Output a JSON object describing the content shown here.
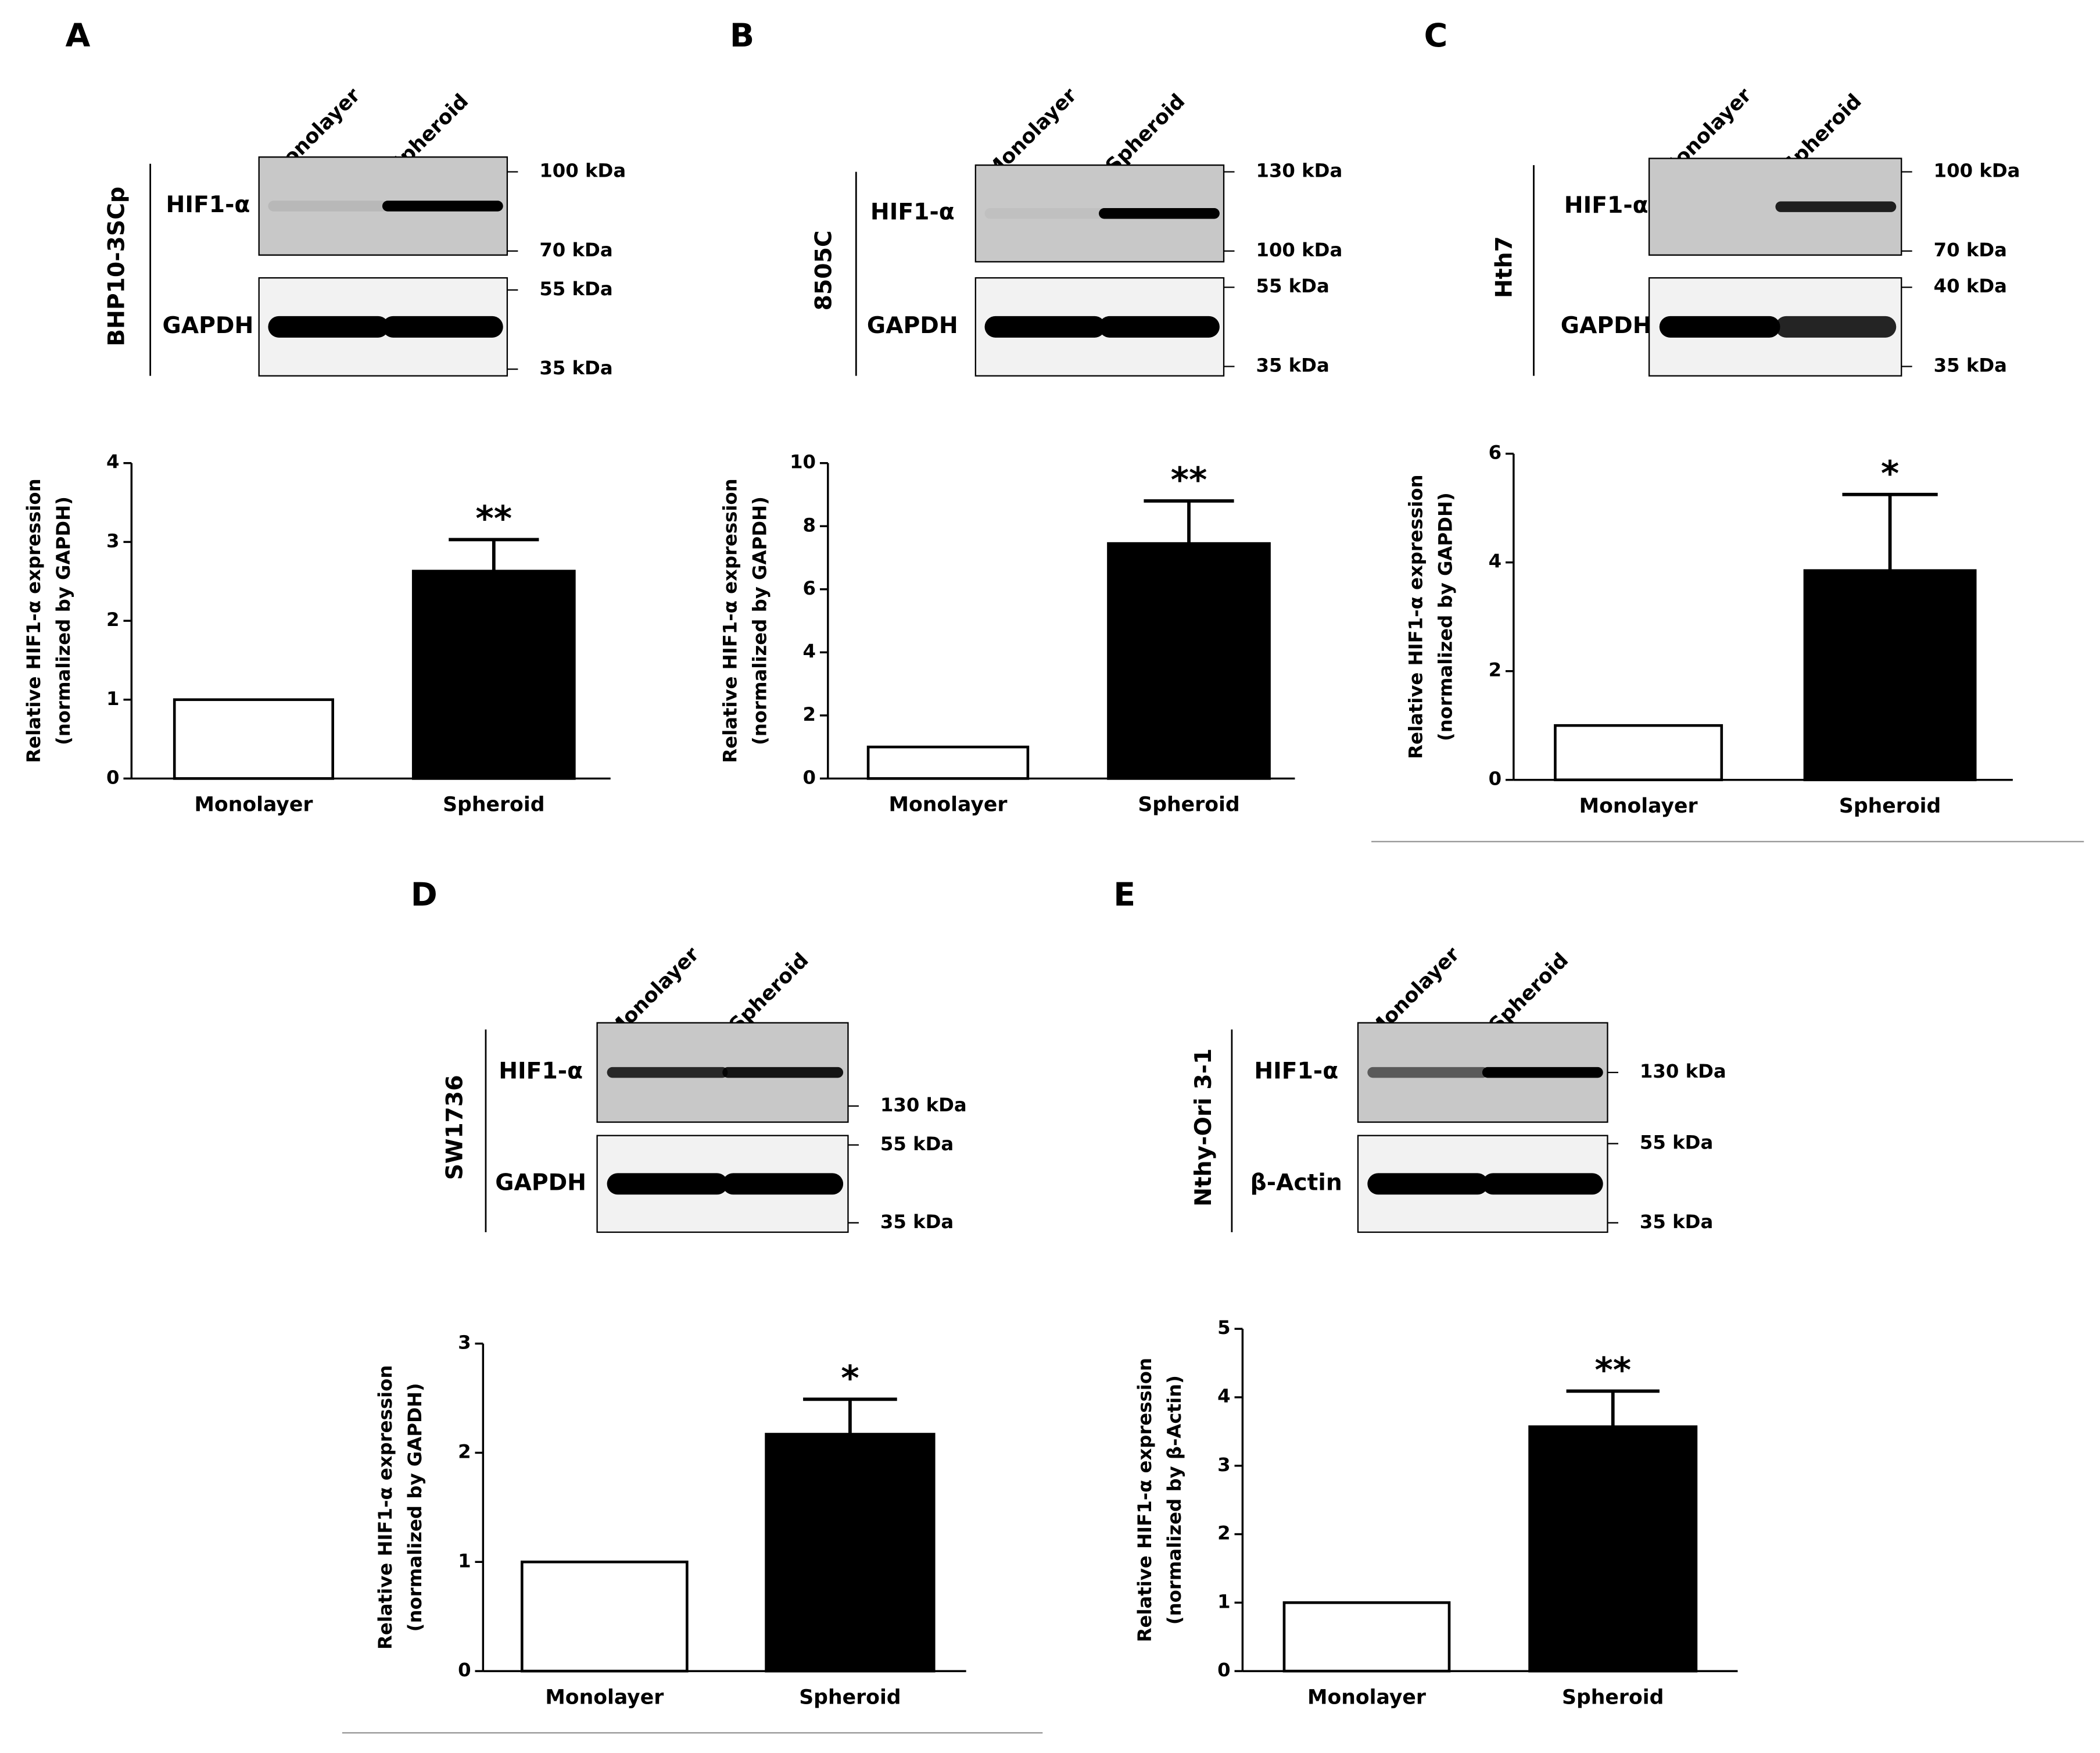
{
  "chart_data": [
    {
      "type": "bar",
      "panel": "A",
      "cell_line": "BHP10-3SCp",
      "lanes": [
        "Monolayer",
        "Spheroid"
      ],
      "bands": [
        "HIF1-α",
        "GAPDH"
      ],
      "markers": [
        "100 kDa",
        "70 kDa",
        "55 kDa",
        "35 kDa"
      ],
      "categories": [
        "Monolayer",
        "Spheroid"
      ],
      "values": [
        1,
        2.63
      ],
      "errors": [
        null,
        0.4
      ],
      "annotation": "**",
      "ylabel": [
        "Relative HIF1-α expression",
        "(normalized by GAPDH)"
      ],
      "ylim": [
        0,
        4
      ],
      "yticks": [
        0,
        1,
        2,
        3,
        4
      ],
      "colors": [
        "#ffffff",
        "#000000"
      ]
    },
    {
      "type": "bar",
      "panel": "B",
      "cell_line": "8505C",
      "lanes": [
        "Monolayer",
        "Spheroid"
      ],
      "bands": [
        "HIF1-α",
        "GAPDH"
      ],
      "markers": [
        "130 kDa",
        "100 kDa",
        "55 kDa",
        "35 kDa"
      ],
      "categories": [
        "Monolayer",
        "Spheroid"
      ],
      "values": [
        1,
        7.45
      ],
      "errors": [
        null,
        1.35
      ],
      "annotation": "**",
      "ylabel": [
        "Relative HIF1-α expression",
        "(normalized by GAPDH)"
      ],
      "ylim": [
        0,
        10
      ],
      "yticks": [
        0,
        2,
        4,
        6,
        8,
        10
      ],
      "colors": [
        "#ffffff",
        "#000000"
      ]
    },
    {
      "type": "bar",
      "panel": "C",
      "cell_line": "Hth7",
      "lanes": [
        "Monolayer",
        "Spheroid"
      ],
      "bands": [
        "HIF1-α",
        "GAPDH"
      ],
      "markers": [
        "100 kDa",
        "70 kDa",
        "40 kDa",
        "35 kDa"
      ],
      "categories": [
        "Monolayer",
        "Spheroid"
      ],
      "values": [
        1,
        3.85
      ],
      "errors": [
        null,
        1.4
      ],
      "annotation": "*",
      "ylabel": [
        "Relative HIF1-α expression",
        "(normalized by GAPDH)"
      ],
      "ylim": [
        0,
        6
      ],
      "yticks": [
        0,
        2,
        4,
        6
      ],
      "colors": [
        "#ffffff",
        "#000000"
      ]
    },
    {
      "type": "bar",
      "panel": "D",
      "cell_line": "SW1736",
      "lanes": [
        "Monolayer",
        "Spheroid"
      ],
      "bands": [
        "HIF1-α",
        "GAPDH"
      ],
      "markers": [
        "130 kDa",
        "55 kDa",
        "35 kDa"
      ],
      "categories": [
        "Monolayer",
        "Spheroid"
      ],
      "values": [
        1,
        2.17
      ],
      "errors": [
        null,
        0.32
      ],
      "annotation": "*",
      "ylabel": [
        "Relative HIF1-α expression",
        "(normalized by GAPDH)"
      ],
      "ylim": [
        0,
        3
      ],
      "yticks": [
        0,
        1,
        2,
        3
      ],
      "colors": [
        "#ffffff",
        "#000000"
      ]
    },
    {
      "type": "bar",
      "panel": "E",
      "cell_line": "Nthy-Ori 3-1",
      "lanes": [
        "Monolayer",
        "Spheroid"
      ],
      "bands": [
        "HIF1-α",
        "β-Actin"
      ],
      "markers": [
        "130 kDa",
        "55 kDa",
        "35 kDa"
      ],
      "categories": [
        "Monolayer",
        "Spheroid"
      ],
      "values": [
        1,
        3.57
      ],
      "errors": [
        null,
        0.52
      ],
      "annotation": "**",
      "ylabel": [
        "Relative HIF1-α expression",
        "(normalized by β-Actin)"
      ],
      "ylim": [
        0,
        5
      ],
      "yticks": [
        0,
        1,
        2,
        3,
        4,
        5
      ],
      "colors": [
        "#ffffff",
        "#000000"
      ]
    }
  ]
}
